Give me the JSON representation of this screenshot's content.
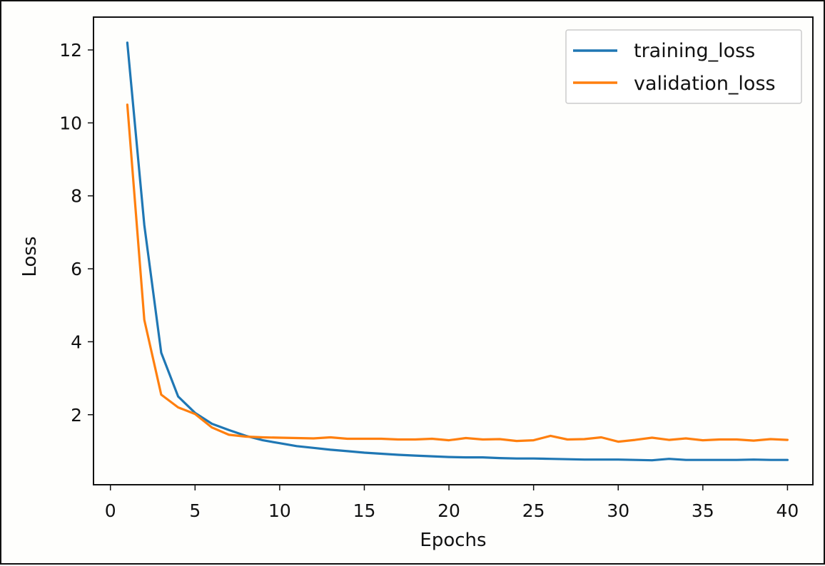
{
  "chart_data": {
    "type": "line",
    "title": "",
    "xlabel": "Epochs",
    "ylabel": "Loss",
    "xlim": [
      -1,
      41.5
    ],
    "ylim": [
      0.08,
      12.9
    ],
    "xticks": [
      0,
      5,
      10,
      15,
      20,
      25,
      30,
      35,
      40
    ],
    "yticks": [
      2,
      4,
      6,
      8,
      10,
      12
    ],
    "grid": false,
    "legend": "top-right",
    "x": [
      1,
      2,
      3,
      4,
      5,
      6,
      7,
      8,
      9,
      10,
      11,
      12,
      13,
      14,
      15,
      16,
      17,
      18,
      19,
      20,
      21,
      22,
      23,
      24,
      25,
      26,
      27,
      28,
      29,
      30,
      31,
      32,
      33,
      34,
      35,
      36,
      37,
      38,
      39,
      40
    ],
    "series": [
      {
        "name": "training_loss",
        "color": "#1f77b4",
        "values": [
          12.2,
          7.2,
          3.7,
          2.5,
          2.05,
          1.75,
          1.58,
          1.42,
          1.3,
          1.22,
          1.14,
          1.09,
          1.04,
          1.0,
          0.96,
          0.93,
          0.9,
          0.88,
          0.86,
          0.84,
          0.83,
          0.83,
          0.81,
          0.8,
          0.8,
          0.79,
          0.78,
          0.77,
          0.77,
          0.77,
          0.76,
          0.75,
          0.79,
          0.76,
          0.76,
          0.76,
          0.76,
          0.77,
          0.76,
          0.76
        ]
      },
      {
        "name": "validation_loss",
        "color": "#ff7f0e",
        "values": [
          10.5,
          4.6,
          2.55,
          2.2,
          2.02,
          1.65,
          1.45,
          1.4,
          1.38,
          1.37,
          1.36,
          1.35,
          1.38,
          1.34,
          1.34,
          1.34,
          1.32,
          1.32,
          1.34,
          1.3,
          1.36,
          1.32,
          1.33,
          1.28,
          1.3,
          1.42,
          1.32,
          1.33,
          1.38,
          1.26,
          1.31,
          1.37,
          1.31,
          1.35,
          1.3,
          1.32,
          1.32,
          1.29,
          1.33,
          1.31
        ]
      }
    ]
  }
}
